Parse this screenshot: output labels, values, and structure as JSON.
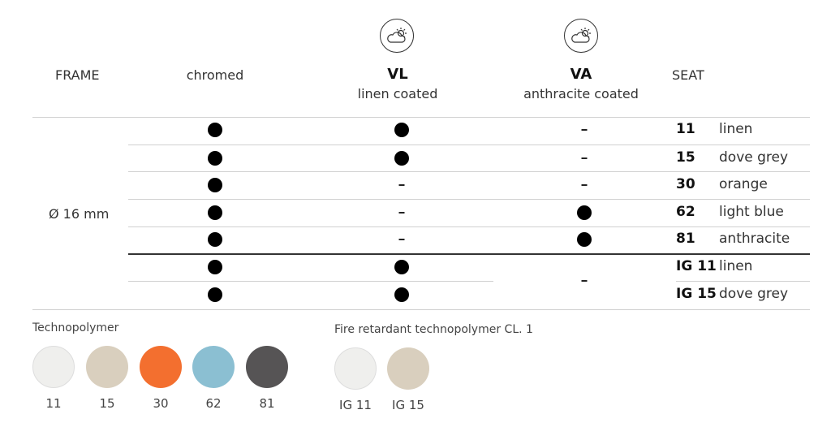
{
  "header": {
    "frame": "FRAME",
    "chromed": "chromed",
    "vl_code": "VL",
    "vl_label": "linen coated",
    "va_code": "VA",
    "va_label": "anthracite coated",
    "seat": "SEAT",
    "weather_icon": "cloud-sun-icon"
  },
  "frame_size": "Ø 16 mm",
  "rows": [
    {
      "chromed": true,
      "vl": true,
      "va": false,
      "code": "11",
      "name": "linen"
    },
    {
      "chromed": true,
      "vl": true,
      "va": false,
      "code": "15",
      "name": "dove grey"
    },
    {
      "chromed": true,
      "vl": false,
      "va": false,
      "code": "30",
      "name": "orange"
    },
    {
      "chromed": true,
      "vl": false,
      "va": true,
      "code": "62",
      "name": "light blue"
    },
    {
      "chromed": true,
      "vl": false,
      "va": true,
      "code": "81",
      "name": "anthracite"
    },
    {
      "chromed": true,
      "vl": true,
      "va": false,
      "code": "IG 11",
      "name": "linen"
    },
    {
      "chromed": true,
      "vl": true,
      "va": false,
      "code": "IG 15",
      "name": "dove grey"
    }
  ],
  "dash": "-",
  "technopolymer": {
    "title": "Technopolymer",
    "swatches": [
      {
        "label": "11",
        "color": "#efefed"
      },
      {
        "label": "15",
        "color": "#d9cfbe"
      },
      {
        "label": "30",
        "color": "#f36f2f"
      },
      {
        "label": "62",
        "color": "#8bbfd2"
      },
      {
        "label": "81",
        "color": "#565455"
      }
    ]
  },
  "fire_retardant": {
    "title": "Fire retardant technopolymer CL. 1",
    "swatches": [
      {
        "label": "IG 11",
        "color": "#efefed"
      },
      {
        "label": "IG 15",
        "color": "#d9cfbe"
      }
    ]
  }
}
